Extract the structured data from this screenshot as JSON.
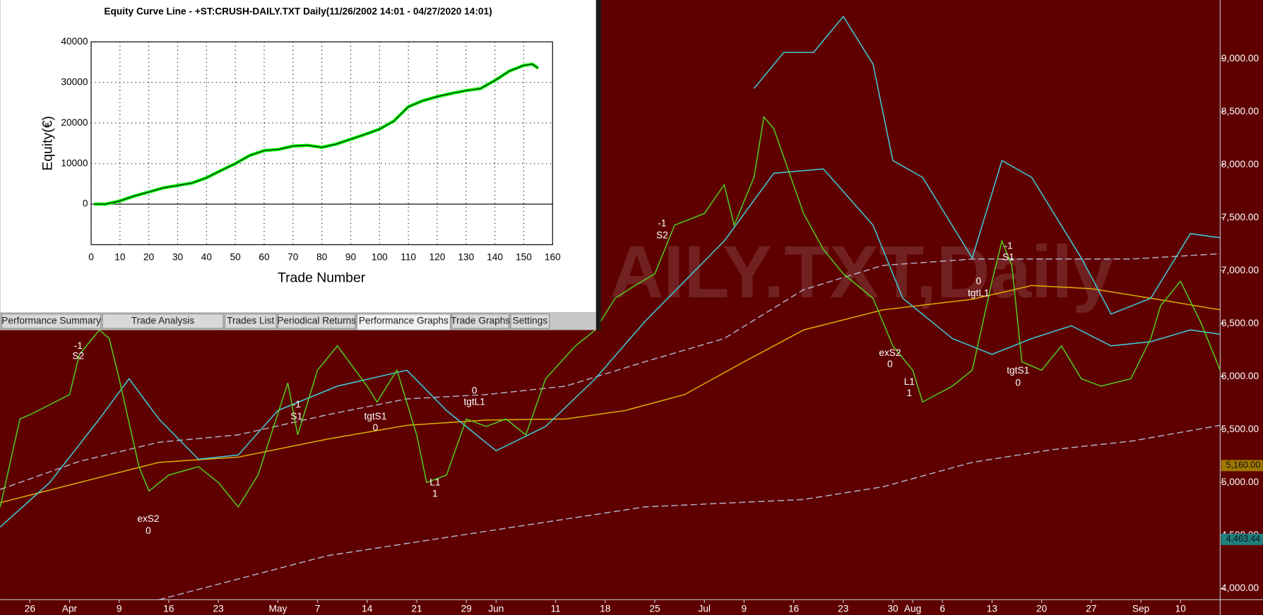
{
  "window": {
    "tabs": [
      "Performance Summary",
      "Trade Analysis",
      "Trades List",
      "Periodical Returns",
      "Performance Graphs",
      "Trade Graphs",
      "Settings"
    ],
    "active_tab": 4
  },
  "chart_data": [
    {
      "type": "line",
      "title": "Equity Curve Line - +ST:CRUSH-DAILY.TXT Daily(11/26/2002 14:01 - 04/27/2020 14:01)",
      "x_label": "Trade Number",
      "y_label": "Equity(€)",
      "xlim": [
        0,
        160
      ],
      "ylim": [
        -10000,
        40000
      ],
      "xticks": [
        0,
        10,
        20,
        30,
        40,
        50,
        60,
        70,
        80,
        90,
        100,
        110,
        120,
        130,
        140,
        150,
        160
      ],
      "yticks": [
        0,
        10000,
        20000,
        30000,
        40000
      ],
      "grid": true,
      "series": [
        {
          "name": "Equity",
          "color": "#00ff00",
          "x": [
            1,
            5,
            10,
            15,
            20,
            25,
            30,
            35,
            40,
            45,
            50,
            55,
            60,
            65,
            70,
            75,
            80,
            85,
            90,
            95,
            100,
            105,
            110,
            115,
            120,
            125,
            130,
            135,
            140,
            145,
            150,
            153,
            155
          ],
          "values": [
            0,
            0,
            800,
            2000,
            3000,
            4000,
            4600,
            5200,
            6500,
            8300,
            10000,
            12000,
            13200,
            13500,
            14300,
            14500,
            14000,
            14800,
            16000,
            17200,
            18500,
            20500,
            24000,
            25500,
            26500,
            27300,
            28000,
            28500,
            30500,
            32800,
            34200,
            34500,
            33500
          ]
        }
      ]
    },
    {
      "type": "line",
      "watermark": "AILY.TXT,Daily",
      "background": "#5e0000",
      "xlim": [
        0,
        123
      ],
      "ylim": [
        3894,
        9555
      ],
      "xticks": [
        {
          "value": 3,
          "label": "26"
        },
        {
          "value": 7,
          "label": "Apr"
        },
        {
          "value": 12,
          "label": "9"
        },
        {
          "value": 17,
          "label": "16"
        },
        {
          "value": 22,
          "label": "23"
        },
        {
          "value": 28,
          "label": "May"
        },
        {
          "value": 32,
          "label": "7"
        },
        {
          "value": 37,
          "label": "14"
        },
        {
          "value": 42,
          "label": "21"
        },
        {
          "value": 47,
          "label": "29"
        },
        {
          "value": 50,
          "label": "Jun"
        },
        {
          "value": 56,
          "label": "11"
        },
        {
          "value": 61,
          "label": "18"
        },
        {
          "value": 66,
          "label": "25"
        },
        {
          "value": 71,
          "label": "Jul"
        },
        {
          "value": 75,
          "label": "9"
        },
        {
          "value": 80,
          "label": "16"
        },
        {
          "value": 85,
          "label": "23"
        },
        {
          "value": 90,
          "label": "30"
        },
        {
          "value": 92,
          "label": "Aug"
        },
        {
          "value": 95,
          "label": "6"
        },
        {
          "value": 100,
          "label": "13"
        },
        {
          "value": 105,
          "label": "20"
        },
        {
          "value": 110,
          "label": "27"
        },
        {
          "value": 115,
          "label": "Sep"
        },
        {
          "value": 119,
          "label": "10"
        }
      ],
      "yticks": [
        {
          "value": 4000,
          "label": "4,000.00"
        },
        {
          "value": 4500,
          "label": "4,500.00"
        },
        {
          "value": 5000,
          "label": "5,000.00"
        },
        {
          "value": 5500,
          "label": "5,500.00"
        },
        {
          "value": 6000,
          "label": "6,000.00"
        },
        {
          "value": 6500,
          "label": "6,500.00"
        },
        {
          "value": 7000,
          "label": "7,000.00"
        },
        {
          "value": 7500,
          "label": "7,500.00"
        },
        {
          "value": 8000,
          "label": "8,000.00"
        },
        {
          "value": 8500,
          "label": "8,500.00"
        },
        {
          "value": 9000,
          "label": "9,000.00"
        }
      ],
      "price_markers": [
        {
          "value": 5160,
          "label": "5,160.00",
          "color": "#a07800"
        },
        {
          "value": 4463.44,
          "label": "4,463.44",
          "color": "#1f8080"
        }
      ],
      "series": [
        {
          "name": "Upper dashed",
          "color": "#b0b0c8",
          "dashed": true,
          "x": [
            0,
            8,
            16,
            24,
            33,
            41,
            49,
            57,
            65,
            73,
            81,
            89,
            98,
            106,
            114,
            123
          ],
          "values": [
            4935,
            5200,
            5380,
            5450,
            5640,
            5790,
            5830,
            5910,
            6140,
            6360,
            6820,
            7050,
            7110,
            7110,
            7110,
            7160
          ]
        },
        {
          "name": "Lower dashed",
          "color": "#b0b0c8",
          "dashed": true,
          "x": [
            16,
            33,
            49,
            65,
            81,
            89,
            98,
            106,
            114,
            123
          ],
          "values": [
            3894,
            4310,
            4540,
            4770,
            4840,
            4960,
            5190,
            5310,
            5390,
            5540
          ]
        },
        {
          "name": "Average",
          "color": "#e0b000",
          "dashed": false,
          "x": [
            0,
            8,
            16,
            24,
            33,
            41,
            49,
            57,
            63,
            69,
            75,
            81,
            89,
            98,
            104,
            110,
            116,
            123
          ],
          "values": [
            4810,
            5000,
            5190,
            5240,
            5410,
            5540,
            5590,
            5600,
            5680,
            5830,
            6140,
            6440,
            6630,
            6730,
            6860,
            6830,
            6740,
            6630
          ]
        },
        {
          "name": "Band",
          "color": "#40d0e0",
          "dashed": false,
          "x": [
            0,
            5,
            10,
            13,
            16,
            20,
            24,
            28,
            34,
            41,
            45,
            50,
            55,
            60,
            65,
            73,
            78,
            83,
            88,
            91,
            96,
            100,
            104,
            108,
            112,
            116,
            120,
            123
          ],
          "values": [
            4580,
            5000,
            5600,
            5980,
            5600,
            5220,
            5260,
            5680,
            5910,
            6060,
            5680,
            5300,
            5530,
            5980,
            6520,
            7280,
            7920,
            7960,
            7430,
            6740,
            6360,
            6210,
            6360,
            6480,
            6290,
            6330,
            6440,
            6400
          ]
        },
        {
          "name": "Outer band",
          "color": "#40d0e0",
          "dashed": false,
          "x": [
            76,
            79,
            82,
            85,
            88,
            90,
            93,
            98,
            101,
            104,
            109,
            112,
            116,
            120,
            123
          ],
          "values": [
            8720,
            9060,
            9060,
            9400,
            8950,
            8040,
            7880,
            7120,
            8040,
            7880,
            7120,
            6590,
            6740,
            7350,
            7310
          ]
        },
        {
          "name": "Close",
          "color": "#50d020",
          "dashed": false,
          "x": [
            0,
            2,
            3,
            7,
            8,
            10,
            11,
            12,
            14,
            15,
            17,
            20,
            22,
            24,
            26,
            29,
            30,
            32,
            34,
            37,
            38,
            40,
            42,
            43,
            45,
            47,
            49,
            51,
            53,
            55,
            58,
            60,
            62,
            64,
            66,
            68,
            71,
            73,
            74,
            76,
            77,
            78,
            81,
            83,
            85,
            88,
            90,
            92,
            93,
            96,
            98,
            100,
            101,
            102,
            103,
            105,
            107,
            109,
            111,
            114,
            116,
            117,
            119,
            121,
            123
          ],
          "values": [
            4767,
            5600,
            5640,
            5830,
            6210,
            6440,
            6360,
            5980,
            5150,
            4920,
            5070,
            5150,
            5000,
            4770,
            5070,
            5940,
            5450,
            6060,
            6290,
            5910,
            5760,
            6060,
            5450,
            5000,
            5070,
            5600,
            5530,
            5600,
            5450,
            5980,
            6290,
            6440,
            6740,
            6860,
            6970,
            7430,
            7540,
            7810,
            7430,
            7880,
            8450,
            8340,
            7540,
            7200,
            6970,
            6740,
            6290,
            6060,
            5760,
            5910,
            6060,
            6900,
            7280,
            7050,
            6140,
            6060,
            6290,
            5980,
            5910,
            5980,
            6360,
            6670,
            6900,
            6520,
            6060
          ]
        }
      ],
      "annotations": [
        "-1",
        "S2",
        "exS2",
        "0",
        "-1",
        "S1",
        "tgtS1",
        "0",
        "L1",
        "1",
        "0",
        "tgtL1",
        "-1",
        "S2",
        "exS2",
        "0",
        "L1",
        "1",
        "0",
        "tgtL1",
        "-1",
        "S1",
        "tgtS1",
        "0"
      ]
    }
  ]
}
